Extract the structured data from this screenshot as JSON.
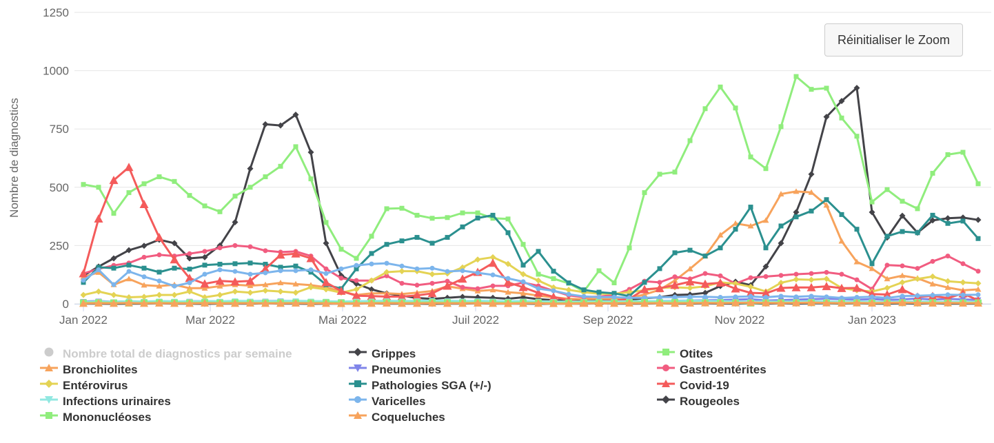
{
  "ui": {
    "reset_zoom_label": "Réinitialiser le Zoom",
    "y_axis_title": "Nombre de diagnostics",
    "y_tick_labels": [
      "0",
      "250",
      "500",
      "750",
      "1000",
      "1250"
    ],
    "x_tick_labels": [
      "Jan 2022",
      "Mar 2022",
      "Mai 2022",
      "Juil 2022",
      "Sep 2022",
      "Nov 2022",
      "Jan 2023"
    ]
  },
  "colors": {
    "grid": "#e6e6e6",
    "axis": "#ccd6eb",
    "axis_text": "#666666",
    "legend_text": "#333333",
    "legend_disabled": "#cccccc",
    "button_bg": "#f7f7f7",
    "button_border": "#cccccc",
    "button_text": "#333333"
  },
  "chart_data": {
    "type": "line",
    "title": "",
    "ylabel": "Nombre de diagnostics",
    "xlabel": "",
    "ylim": [
      0,
      1250
    ],
    "y_ticks": [
      0,
      250,
      500,
      750,
      1000,
      1250
    ],
    "x_unit": "week",
    "x_range": "Jan 2022 - Fév 2023, points hebdomadaires",
    "n_points": 60,
    "x_tick_labels": [
      "Jan 2022",
      "Mar 2022",
      "Mai 2022",
      "Juil 2022",
      "Sep 2022",
      "Nov 2022",
      "Jan 2023"
    ],
    "grid": "horizontal",
    "legend_position": "bottom",
    "series": [
      {
        "id": "total",
        "name": "Nombre total de diagnostics par semaine",
        "color": "#7cb5ec",
        "marker": "circle",
        "visible": false,
        "values": []
      },
      {
        "id": "grippes",
        "name": "Grippes",
        "color": "#434348",
        "marker": "diamond",
        "visible": true,
        "values": [
          121,
          160,
          195,
          230,
          249,
          275,
          260,
          195,
          200,
          250,
          350,
          580,
          770,
          765,
          811,
          650,
          260,
          121,
          86,
          62,
          45,
          35,
          25,
          21,
          26,
          30,
          28,
          26,
          22,
          28,
          20,
          16,
          13,
          15,
          18,
          15,
          18,
          24,
          28,
          38,
          40,
          47,
          76,
          95,
          80,
          160,
          260,
          393,
          556,
          802,
          870,
          926,
          393,
          284,
          378,
          305,
          358,
          367,
          370,
          360
        ]
      },
      {
        "id": "otites",
        "name": "Otites",
        "color": "#90ed7d",
        "marker": "square",
        "visible": true,
        "values": [
          512,
          500,
          388,
          477,
          515,
          545,
          525,
          465,
          420,
          395,
          462,
          500,
          545,
          590,
          674,
          536,
          349,
          234,
          195,
          290,
          408,
          410,
          380,
          367,
          370,
          390,
          390,
          367,
          364,
          255,
          127,
          108,
          88,
          53,
          142,
          90,
          240,
          477,
          556,
          565,
          700,
          837,
          930,
          840,
          630,
          580,
          760,
          975,
          920,
          925,
          797,
          719,
          437,
          490,
          440,
          408,
          560,
          640,
          650,
          515
        ]
      },
      {
        "id": "bronchiolites",
        "name": "Bronchiolites",
        "color": "#f7a35c",
        "marker": "triangle",
        "visible": true,
        "values": [
          115,
          135,
          82,
          107,
          80,
          76,
          82,
          67,
          67,
          76,
          82,
          78,
          82,
          90,
          85,
          80,
          71,
          53,
          38,
          45,
          45,
          42,
          48,
          55,
          75,
          65,
          55,
          60,
          50,
          45,
          35,
          28,
          22,
          20,
          22,
          22,
          25,
          40,
          60,
          100,
          150,
          205,
          295,
          345,
          334,
          358,
          471,
          482,
          478,
          423,
          269,
          180,
          151,
          107,
          121,
          110,
          85,
          70,
          58,
          62
        ]
      },
      {
        "id": "pneumonies",
        "name": "Pneumonies",
        "color": "#8085e9",
        "marker": "triangle-down",
        "visible": true,
        "values": [
          10,
          12,
          9,
          11,
          10,
          9,
          10,
          11,
          12,
          10,
          11,
          12,
          12,
          13,
          12,
          11,
          10,
          9,
          8,
          9,
          10,
          11,
          10,
          9,
          10,
          11,
          10,
          9,
          8,
          8,
          9,
          8,
          7,
          7,
          8,
          8,
          9,
          10,
          12,
          13,
          14,
          15,
          16,
          18,
          20,
          14,
          16,
          18,
          20,
          22,
          20,
          18,
          20,
          17,
          19,
          23,
          18,
          21,
          19,
          17
        ]
      },
      {
        "id": "gastroenterites",
        "name": "Gastroentérites",
        "color": "#f15c80",
        "marker": "circle",
        "visible": true,
        "values": [
          130,
          150,
          165,
          175,
          200,
          210,
          205,
          215,
          225,
          240,
          250,
          245,
          228,
          222,
          225,
          205,
          150,
          110,
          100,
          100,
          120,
          88,
          80,
          88,
          97,
          71,
          65,
          77,
          77,
          91,
          77,
          56,
          36,
          29,
          31,
          38,
          62,
          97,
          92,
          116,
          107,
          130,
          120,
          87,
          112,
          117,
          122,
          127,
          130,
          135,
          127,
          103,
          63,
          166,
          163,
          152,
          182,
          205,
          172,
          140
        ]
      },
      {
        "id": "enterovirus",
        "name": "Entérovirus",
        "color": "#e4d354",
        "marker": "diamond",
        "visible": true,
        "values": [
          38,
          53,
          38,
          28,
          30,
          38,
          38,
          53,
          28,
          38,
          53,
          48,
          57,
          53,
          48,
          71,
          62,
          48,
          62,
          100,
          136,
          140,
          140,
          127,
          130,
          156,
          190,
          200,
          171,
          127,
          100,
          70,
          60,
          50,
          43,
          43,
          50,
          58,
          68,
          71,
          68,
          75,
          92,
          87,
          73,
          53,
          90,
          105,
          103,
          107,
          68,
          58,
          53,
          68,
          92,
          107,
          117,
          97,
          92,
          88
        ]
      },
      {
        "id": "pathologies-sga",
        "name": "Pathologies SGA (+/-)",
        "color": "#2b908f",
        "marker": "square",
        "visible": true,
        "values": [
          92,
          157,
          153,
          166,
          153,
          136,
          153,
          149,
          166,
          170,
          172,
          175,
          170,
          157,
          162,
          136,
          82,
          65,
          150,
          216,
          255,
          270,
          285,
          260,
          285,
          330,
          368,
          380,
          305,
          166,
          225,
          140,
          90,
          60,
          50,
          45,
          33,
          92,
          151,
          219,
          230,
          205,
          240,
          320,
          415,
          240,
          334,
          373,
          398,
          447,
          383,
          320,
          172,
          290,
          310,
          305,
          380,
          345,
          355,
          280
        ]
      },
      {
        "id": "covid-19",
        "name": "Covid-19",
        "color": "#f45b5b",
        "marker": "triangle",
        "visible": true,
        "values": [
          130,
          365,
          530,
          586,
          427,
          285,
          190,
          110,
          86,
          98,
          95,
          98,
          150,
          210,
          215,
          195,
          92,
          55,
          35,
          33,
          31,
          31,
          36,
          45,
          77,
          107,
          136,
          175,
          92,
          71,
          47,
          30,
          15,
          5,
          11,
          13,
          21,
          62,
          67,
          80,
          95,
          85,
          90,
          65,
          47,
          45,
          68,
          70,
          70,
          75,
          67,
          68,
          42,
          40,
          62,
          30,
          33,
          25,
          44,
          15
        ]
      },
      {
        "id": "infections-urinaires",
        "name": "Infections urinaires",
        "color": "#91e8e1",
        "marker": "triangle-down",
        "visible": true,
        "values": [
          8,
          10,
          9,
          11,
          10,
          12,
          11,
          10,
          12,
          11,
          13,
          12,
          11,
          12,
          13,
          12,
          11,
          10,
          11,
          12,
          13,
          12,
          13,
          14,
          13,
          12,
          13,
          12,
          11,
          12,
          11,
          10,
          9,
          10,
          11,
          10,
          11,
          12,
          11,
          12,
          13,
          12,
          11,
          10,
          9,
          10,
          9,
          10,
          11,
          10,
          9,
          10,
          9,
          8,
          9,
          10,
          9,
          8,
          9,
          8
        ]
      },
      {
        "id": "varicelles",
        "name": "Varicelles",
        "color": "#7cb5ec",
        "marker": "circle",
        "visible": true,
        "values": [
          101,
          146,
          82,
          139,
          116,
          98,
          76,
          90,
          127,
          146,
          139,
          127,
          133,
          142,
          142,
          146,
          130,
          150,
          165,
          171,
          174,
          162,
          150,
          153,
          139,
          142,
          133,
          124,
          109,
          95,
          65,
          56,
          41,
          32,
          29,
          29,
          26,
          26,
          28,
          29,
          30,
          30,
          28,
          30,
          32,
          28,
          33,
          30,
          33,
          30,
          25,
          28,
          30,
          25,
          33,
          35,
          37,
          39,
          38,
          39
        ]
      },
      {
        "id": "rougeoles",
        "name": "Rougeoles",
        "color": "#434348",
        "marker": "diamond",
        "visible": true,
        "values": [
          1,
          1,
          0,
          1,
          1,
          2,
          1,
          1,
          0,
          1,
          1,
          1,
          2,
          1,
          1,
          0,
          1,
          1,
          1,
          2,
          1,
          1,
          1,
          0,
          1,
          1,
          2,
          1,
          1,
          1,
          0,
          1,
          1,
          1,
          2,
          1,
          1,
          1,
          2,
          1,
          1,
          2,
          1,
          1,
          2,
          1,
          2,
          1,
          2,
          2,
          1,
          2,
          1,
          1,
          2,
          1,
          2,
          1,
          1,
          1
        ]
      },
      {
        "id": "mononucleoses",
        "name": "Mononucléoses",
        "color": "#90ed7d",
        "marker": "square",
        "visible": true,
        "values": [
          4,
          5,
          4,
          3,
          4,
          5,
          4,
          4,
          5,
          4,
          5,
          4,
          4,
          5,
          4,
          4,
          5,
          4,
          3,
          4,
          5,
          4,
          5,
          6,
          5,
          4,
          5,
          4,
          4,
          5,
          4,
          3,
          4,
          4,
          5,
          4,
          5,
          6,
          5,
          6,
          5,
          4,
          5,
          4,
          3,
          4,
          5,
          4,
          5,
          4,
          3,
          4,
          3,
          4,
          5,
          4,
          5,
          4,
          4,
          4
        ]
      },
      {
        "id": "coqueluches",
        "name": "Coqueluches",
        "color": "#f7a35c",
        "marker": "triangle",
        "visible": true,
        "values": [
          2,
          3,
          2,
          4,
          2,
          3,
          2,
          2,
          3,
          2,
          2,
          3,
          2,
          2,
          3,
          2,
          2,
          1,
          2,
          2,
          3,
          2,
          2,
          3,
          2,
          2,
          3,
          2,
          1,
          2,
          2,
          1,
          1,
          2,
          2,
          2,
          3,
          2,
          3,
          2,
          3,
          4,
          3,
          4,
          5,
          4,
          3,
          4,
          5,
          4,
          3,
          4,
          3,
          4,
          5,
          4,
          3,
          4,
          3,
          3
        ]
      }
    ]
  }
}
